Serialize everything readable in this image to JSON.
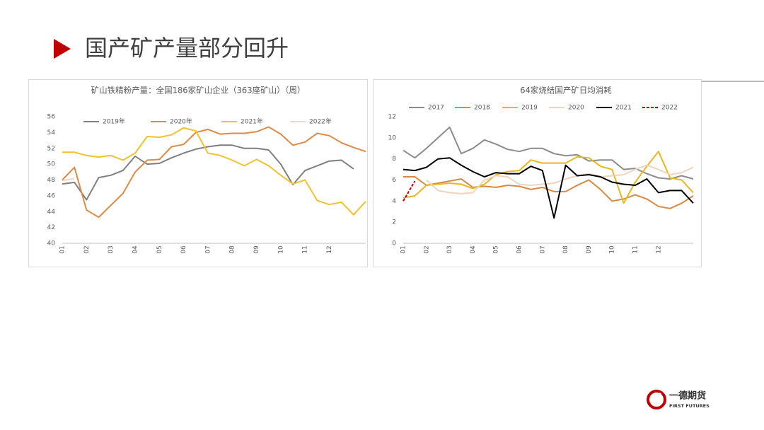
{
  "header": {
    "title": "国产矿产量部分回升"
  },
  "logo": {
    "name": "一德期货",
    "subtitle": "FIRST FUTURES"
  },
  "chart_data": [
    {
      "type": "line",
      "title": "矿山铁精粉产量：全国186家矿山企业（363座矿山）（周）",
      "categories": [
        "01",
        null,
        "02",
        null,
        "03",
        null,
        "04",
        null,
        "05",
        null,
        "06",
        null,
        "07",
        null,
        "08",
        null,
        "09",
        null,
        "10",
        null,
        "11",
        null,
        "12",
        null,
        null,
        null
      ],
      "ylim": [
        40,
        56
      ],
      "yticks": [
        40,
        42,
        44,
        46,
        48,
        50,
        52,
        54,
        56
      ],
      "grid": false,
      "series": [
        {
          "name": "2019年",
          "color": "#7f7f7f",
          "values": [
            47.5,
            47.7,
            45.5,
            48.3,
            48.6,
            49.2,
            51.0,
            50.0,
            50.1,
            50.8,
            51.4,
            51.9,
            52.2,
            52.4,
            52.4,
            52.0,
            52.0,
            51.8,
            50.0,
            47.4,
            49.2,
            49.8,
            50.4,
            50.5,
            49.4,
            null
          ]
        },
        {
          "name": "2020年",
          "color": "#e08a45",
          "values": [
            48.0,
            49.6,
            44.2,
            43.3,
            44.8,
            46.3,
            49.0,
            50.5,
            50.6,
            52.2,
            52.5,
            54.0,
            54.4,
            53.8,
            53.9,
            53.9,
            54.1,
            54.7,
            53.8,
            52.4,
            52.8,
            53.9,
            53.6,
            52.7,
            52.1,
            51.6
          ]
        },
        {
          "name": "2021年",
          "color": "#f2c12e",
          "values": [
            51.5,
            51.5,
            51.1,
            50.9,
            51.1,
            50.5,
            51.4,
            53.5,
            53.4,
            53.7,
            54.6,
            54.2,
            51.4,
            51.1,
            50.5,
            49.8,
            50.6,
            49.8,
            48.6,
            47.5,
            48.0,
            45.4,
            44.9,
            45.2,
            43.6,
            45.3
          ]
        },
        {
          "name": "2022年",
          "color": "#f4d7c2",
          "values": [
            47.9,
            48.2,
            null,
            null,
            null,
            null,
            null,
            null,
            null,
            null,
            null,
            null,
            null,
            null,
            null,
            null,
            null,
            null,
            null,
            null,
            null,
            null,
            null,
            null,
            null,
            null
          ]
        }
      ]
    },
    {
      "type": "line",
      "title": "64家烧结国产矿日均消耗",
      "categories": [
        "01",
        null,
        "02",
        null,
        "03",
        null,
        "04",
        null,
        "05",
        null,
        "06",
        null,
        "07",
        null,
        "08",
        null,
        "09",
        null,
        "10",
        null,
        "11",
        null,
        "12",
        null,
        null,
        null
      ],
      "ylim": [
        0,
        12
      ],
      "yticks": [
        0,
        2,
        4,
        6,
        8,
        10,
        12
      ],
      "grid": false,
      "series": [
        {
          "name": "2017",
          "color": "#8c8c8c",
          "values": [
            8.8,
            8.1,
            9.0,
            10.0,
            11.0,
            8.5,
            9.0,
            9.8,
            9.4,
            8.9,
            8.7,
            9.0,
            9.0,
            8.5,
            8.3,
            8.4,
            7.8,
            7.9,
            7.9,
            7.0,
            7.1,
            6.6,
            6.2,
            6.1,
            6.4,
            6.1
          ]
        },
        {
          "name": "2018",
          "color": "#d9893f",
          "values": [
            6.3,
            6.3,
            5.5,
            5.7,
            5.9,
            6.1,
            5.3,
            5.4,
            5.3,
            5.5,
            5.4,
            5.1,
            5.3,
            4.9,
            4.9,
            5.5,
            6.0,
            5.1,
            4.0,
            4.2,
            4.6,
            4.2,
            3.5,
            3.3,
            3.8,
            4.5
          ]
        },
        {
          "name": "2019",
          "color": "#e8b820",
          "values": [
            4.3,
            4.5,
            5.5,
            5.6,
            5.7,
            5.6,
            5.2,
            5.6,
            6.5,
            6.8,
            6.9,
            7.9,
            7.6,
            7.6,
            7.6,
            8.2,
            8.1,
            7.3,
            7.0,
            3.8,
            5.8,
            7.3,
            8.7,
            6.2,
            6.0,
            4.8
          ]
        },
        {
          "name": "2020",
          "color": "#f2d3bd",
          "values": [
            null,
            null,
            6.0,
            5.0,
            4.8,
            4.7,
            4.8,
            6.0,
            6.4,
            6.3,
            5.6,
            5.5,
            5.6,
            5.7,
            6.1,
            6.4,
            6.6,
            6.3,
            6.4,
            6.5,
            7.0,
            7.4,
            7.0,
            6.5,
            6.7,
            7.2
          ]
        },
        {
          "name": "2021",
          "color": "#000000",
          "values": [
            7.0,
            6.9,
            7.2,
            8.0,
            8.1,
            7.4,
            6.8,
            6.3,
            6.7,
            6.6,
            6.6,
            7.3,
            6.9,
            2.4,
            7.4,
            6.4,
            6.5,
            6.3,
            5.8,
            5.6,
            5.5,
            6.1,
            4.8,
            5.0,
            5.0,
            3.8
          ]
        },
        {
          "name": "2022",
          "color": "#c00000",
          "style": "dashed",
          "values": [
            4.0,
            5.9,
            null,
            null,
            null,
            null,
            null,
            null,
            null,
            null,
            null,
            null,
            null,
            null,
            null,
            null,
            null,
            null,
            null,
            null,
            null,
            null,
            null,
            null,
            null,
            null
          ]
        }
      ]
    }
  ]
}
